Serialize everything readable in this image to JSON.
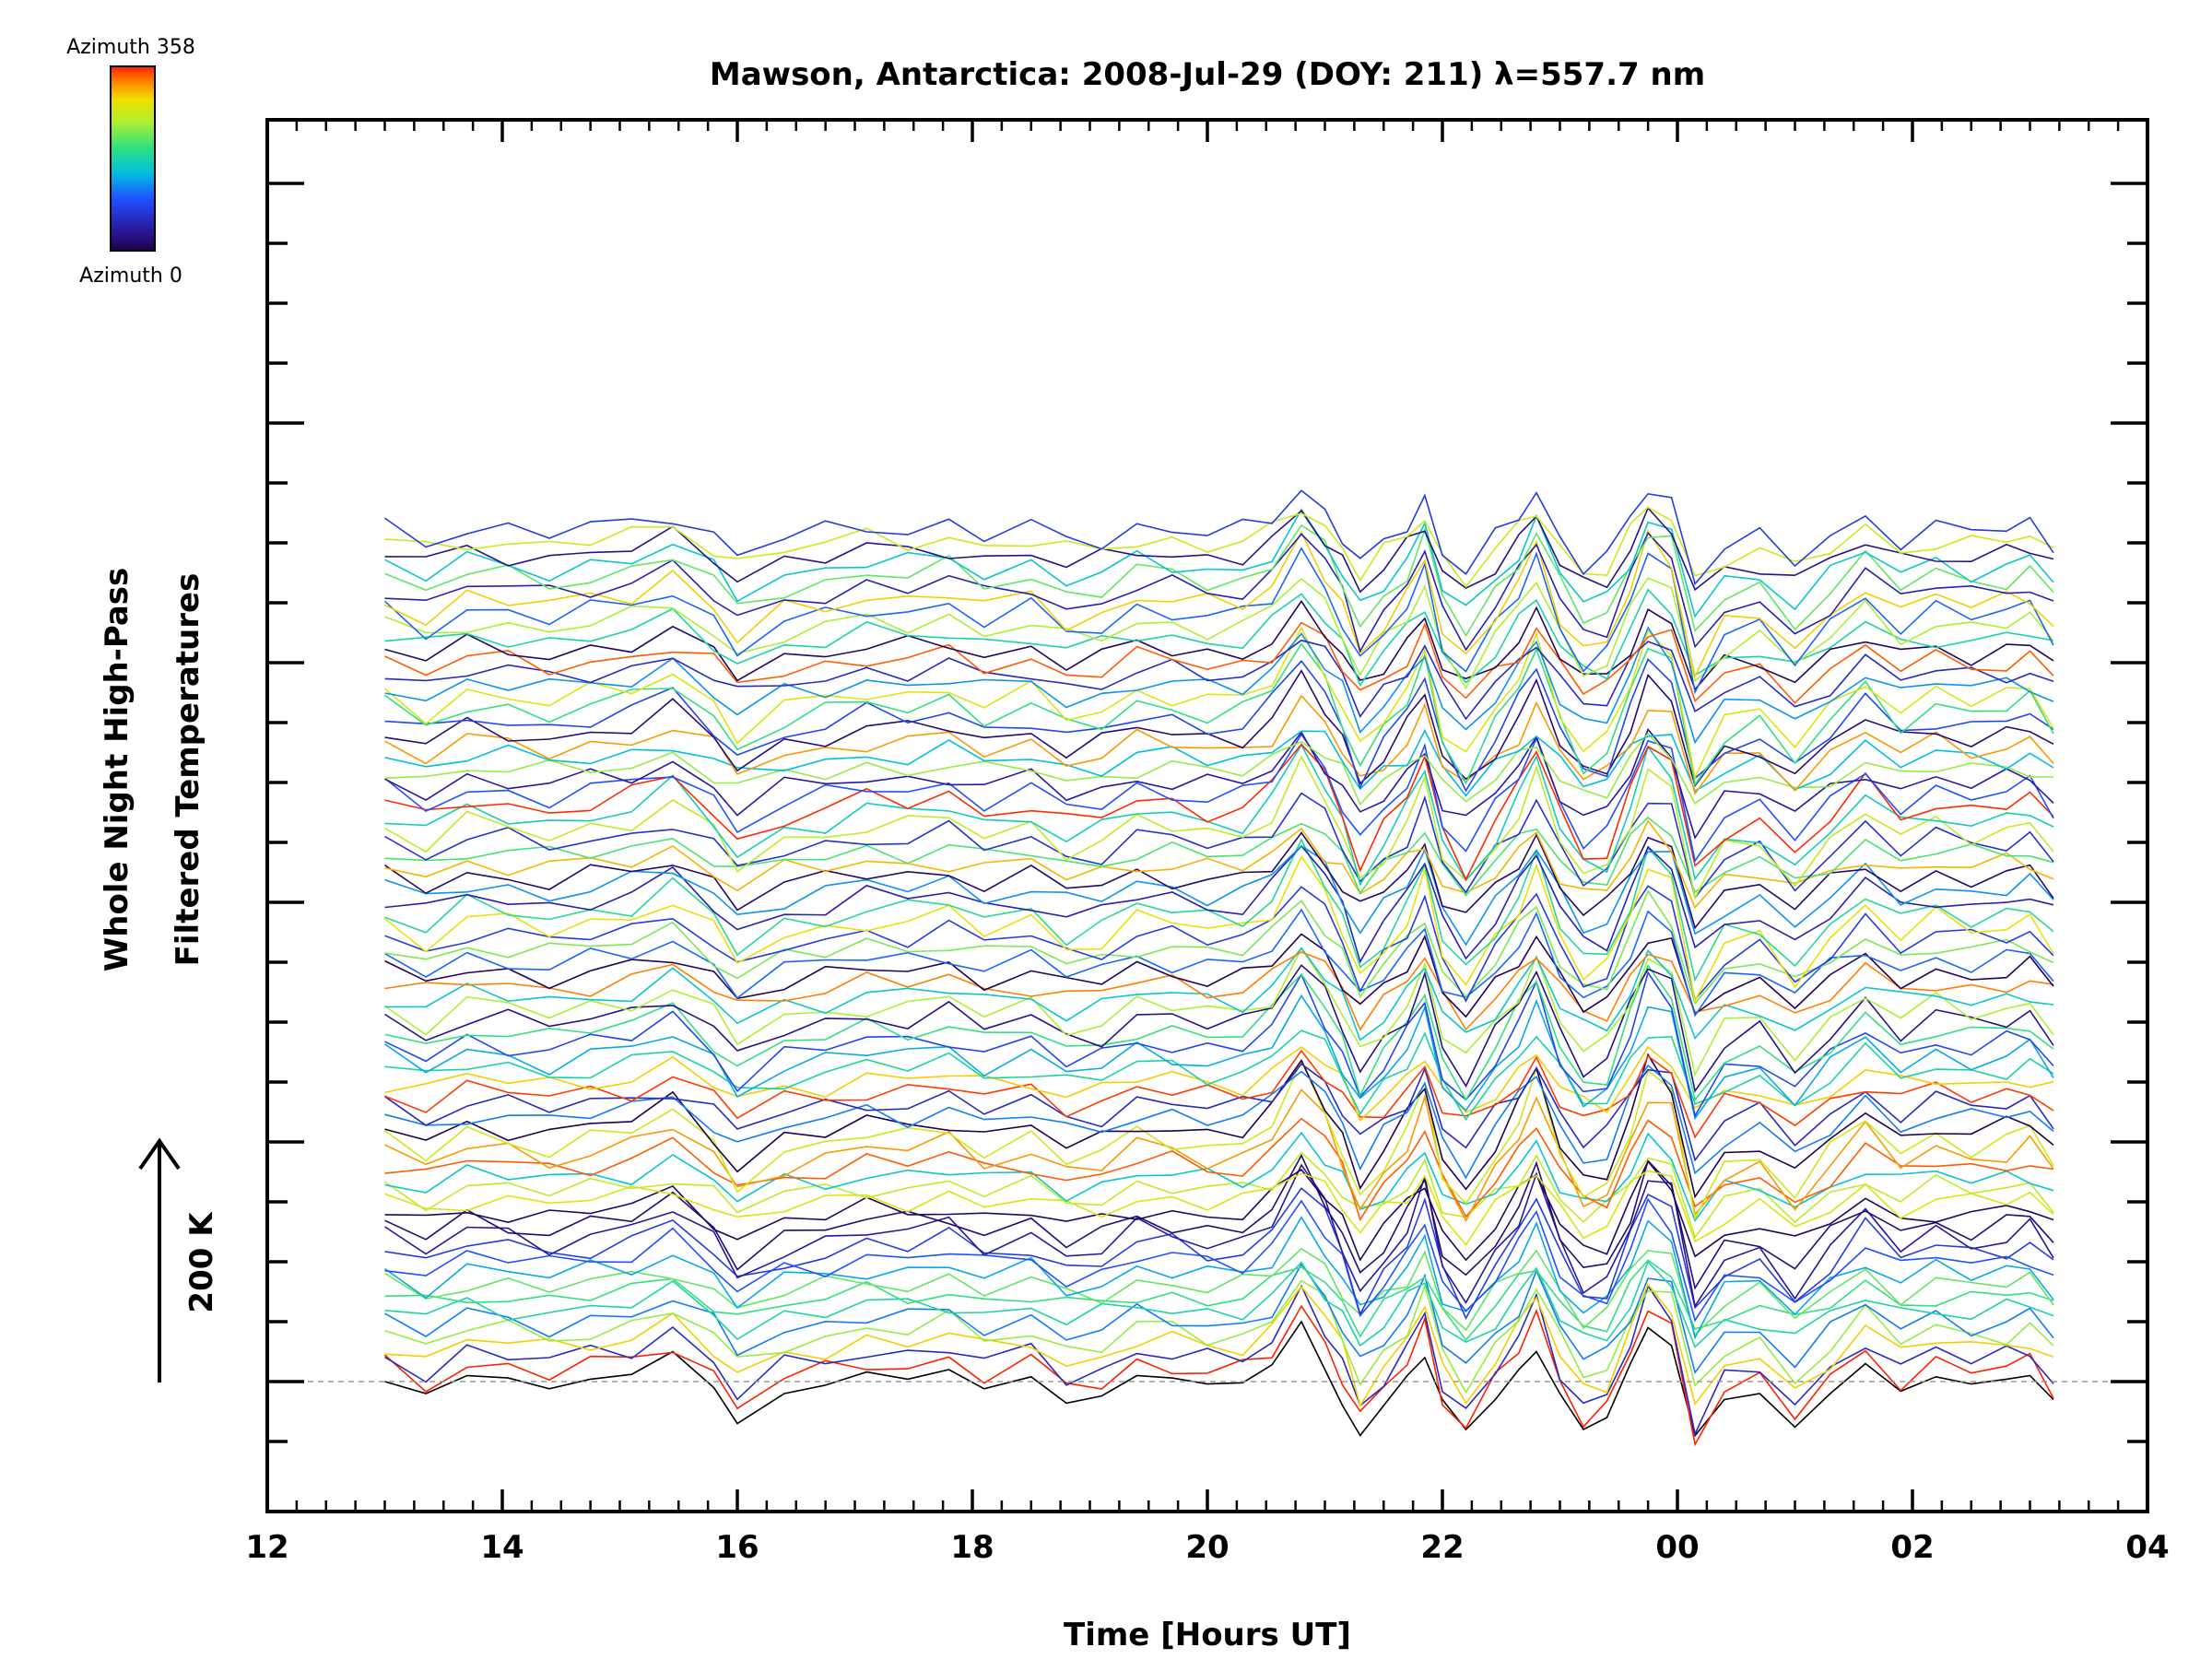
{
  "chart_data": {
    "type": "line",
    "title": "Mawson, Antarctica: 2008-Jul-29 (DOY: 211) λ=557.7 nm",
    "xlabel": "Time [Hours UT]",
    "ylabel_line1": "Whole Night High-Pass",
    "ylabel_line2": "Filtered Temperatures",
    "scale_label": "200 K",
    "colorbar": {
      "top_label": "Azimuth 358",
      "bottom_label": "Azimuth 0",
      "colormap": "rainbow"
    },
    "x_unit": "hours UT (continuous; values past 24 wrap to next day)",
    "xlim": [
      12,
      28
    ],
    "x_ticks": [
      "12",
      "14",
      "16",
      "18",
      "20",
      "22",
      "00",
      "02",
      "04"
    ],
    "y_offset_step_K": 10,
    "x": [
      13.0,
      13.35,
      13.7,
      14.05,
      14.4,
      14.75,
      15.1,
      15.45,
      15.8,
      16.0,
      16.4,
      16.75,
      17.1,
      17.45,
      17.8,
      18.1,
      18.5,
      18.8,
      19.1,
      19.4,
      19.7,
      20.0,
      20.3,
      20.55,
      20.8,
      21.0,
      21.15,
      21.3,
      21.5,
      21.7,
      21.85,
      22.0,
      22.2,
      22.45,
      22.65,
      22.8,
      23.0,
      23.2,
      23.4,
      23.6,
      23.75,
      23.95,
      24.15,
      24.4,
      24.7,
      25.0,
      25.3,
      25.6,
      25.9,
      26.2,
      26.5,
      26.8,
      27.0,
      27.2
    ],
    "template_K": [
      3,
      -12,
      6,
      2,
      -4,
      3,
      8,
      24,
      -4,
      -30,
      -8,
      -3,
      6,
      3,
      10,
      -5,
      4,
      -15,
      -10,
      6,
      3,
      -3,
      -2,
      15,
      55,
      25,
      -5,
      -45,
      -18,
      8,
      40,
      -22,
      -50,
      -12,
      18,
      48,
      -8,
      -40,
      -35,
      12,
      52,
      35,
      -55,
      -18,
      -10,
      -40,
      -10,
      18,
      -8,
      5,
      -3,
      2,
      7,
      -15
    ],
    "bottom_trace_K": [
      0,
      -10,
      5,
      3,
      -6,
      2,
      6,
      25,
      -5,
      -35,
      -10,
      -3,
      8,
      2,
      10,
      -6,
      4,
      -18,
      -12,
      5,
      3,
      -2,
      -1,
      14,
      50,
      10,
      -20,
      -45,
      -20,
      5,
      20,
      -15,
      -40,
      -15,
      10,
      25,
      -10,
      -40,
      -30,
      15,
      45,
      30,
      -45,
      -15,
      -10,
      -38,
      -10,
      15,
      -8,
      4,
      -2,
      2,
      5,
      -15
    ],
    "series_count": 72,
    "series_azimuth_deg": [
      0,
      358,
      60,
      300,
      240,
      120,
      180,
      200,
      220,
      140,
      100,
      80,
      40,
      20,
      10,
      280,
      260,
      160,
      340,
      320,
      270,
      0,
      120,
      60,
      350,
      300,
      180,
      140,
      90,
      200,
      30,
      250,
      160,
      330,
      5,
      110,
      230,
      80,
      290,
      190,
      50,
      130,
      15,
      310,
      210,
      70,
      260,
      170,
      355,
      100,
      40,
      240,
      150,
      320,
      20,
      90,
      200,
      280,
      130,
      60,
      340,
      10,
      180,
      250,
      110,
      300,
      50,
      220,
      160,
      30,
      270,
      80
    ]
  }
}
